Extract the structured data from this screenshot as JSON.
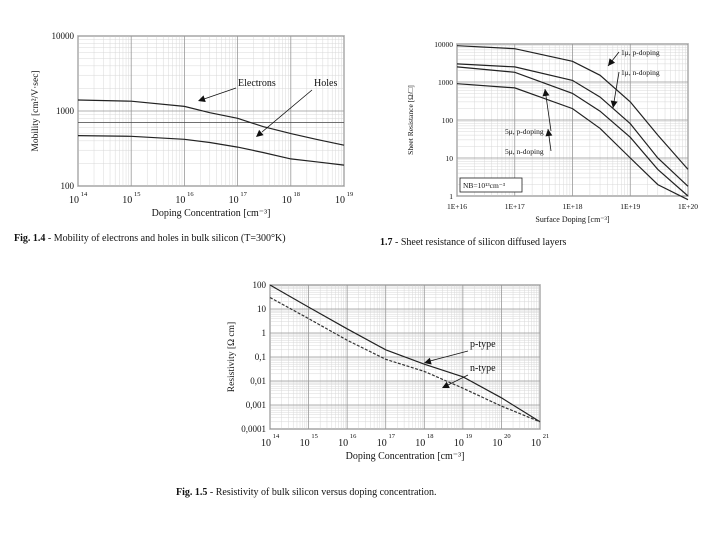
{
  "chart_data": [
    {
      "id": "mobility",
      "type": "line",
      "xlabel": "Doping Concentration [cm⁻³]",
      "ylabel": "Mobility [cm²/V·sec]",
      "xscale": "log",
      "yscale": "log",
      "xlim": [
        100000000000000.0,
        1e+19
      ],
      "ylim": [
        100,
        10000
      ],
      "x_ticks": [
        "10",
        "10",
        "10",
        "10",
        "10",
        "10"
      ],
      "x_tick_exp": [
        "14",
        "15",
        "16",
        "17",
        "18",
        "19"
      ],
      "y_ticks": [
        "100",
        "1000",
        "10000"
      ],
      "hline": 700,
      "grid": true,
      "series": [
        {
          "name": "Electrons",
          "x": [
            100000000000000.0,
            1000000000000000.0,
            1e+16,
            3e+16,
            1e+17,
            3e+17,
            1e+18,
            3e+18,
            1e+19
          ],
          "y": [
            1400,
            1350,
            1150,
            950,
            800,
            620,
            500,
            420,
            350
          ]
        },
        {
          "name": "Holes",
          "x": [
            100000000000000.0,
            1000000000000000.0,
            1e+16,
            3e+16,
            1e+17,
            3e+17,
            1e+18,
            3e+18,
            1e+19
          ],
          "y": [
            470,
            460,
            420,
            380,
            330,
            280,
            230,
            210,
            190
          ]
        }
      ],
      "annotations": [
        "Electrons",
        "Holes"
      ],
      "caption_bold": "Fig. 1.4",
      "caption_rest": " - Mobility of electrons and holes in bulk silicon (T=300°K)"
    },
    {
      "id": "sheet_resistance",
      "type": "line",
      "xlabel": "Surface Doping [cm⁻³]",
      "ylabel": "Sheet Resistance [Ω/□]",
      "xscale": "log",
      "yscale": "log",
      "xlim": [
        1e+16,
        1e+20
      ],
      "ylim": [
        1,
        10000
      ],
      "x_ticks": [
        "1E+16",
        "1E+17",
        "1E+18",
        "1E+19",
        "1E+20"
      ],
      "y_ticks": [
        "1",
        "10",
        "100",
        "1000",
        "10000"
      ],
      "grid": true,
      "series": [
        {
          "name": "1μ, p-doping",
          "x": [
            1e+16,
            1e+17,
            1e+18,
            3e+18,
            1e+19,
            3e+19,
            1e+20
          ],
          "y": [
            9000,
            7500,
            3500,
            1500,
            300,
            40,
            5
          ]
        },
        {
          "name": "1μ, n-doping",
          "x": [
            1e+16,
            1e+17,
            1e+18,
            3e+18,
            1e+19,
            3e+19,
            1e+20
          ],
          "y": [
            3000,
            2500,
            1100,
            400,
            80,
            10,
            1.8
          ]
        },
        {
          "name": "5μ, p-doping",
          "x": [
            1e+16,
            1e+17,
            1e+18,
            3e+18,
            1e+19,
            3e+19,
            1e+20
          ],
          "y": [
            2500,
            1800,
            500,
            170,
            35,
            5,
            1
          ]
        },
        {
          "name": "5μ, n-doping",
          "x": [
            1e+16,
            1e+17,
            1e+18,
            3e+18,
            1e+19,
            3e+19,
            1e+20
          ],
          "y": [
            900,
            700,
            200,
            60,
            10,
            2,
            0.8
          ]
        }
      ],
      "legend_box": "NB=10¹³cm⁻³",
      "caption_bold": "1.7",
      "caption_rest": " - Sheet resistance of silicon diffused layers"
    },
    {
      "id": "resistivity",
      "type": "line",
      "xlabel": "Doping Concentration [cm⁻³]",
      "ylabel": "Resistivity [Ω cm]",
      "xscale": "log",
      "yscale": "log",
      "xlim": [
        100000000000000.0,
        1e+21
      ],
      "ylim": [
        0.0001,
        100
      ],
      "x_ticks": [
        "10",
        "10",
        "10",
        "10",
        "10",
        "10",
        "10",
        "10"
      ],
      "x_tick_exp": [
        "14",
        "15",
        "16",
        "17",
        "18",
        "19",
        "20",
        "21"
      ],
      "y_ticks": [
        "0,0001",
        "0,001",
        "0,01",
        "0,1",
        "1",
        "10",
        "100"
      ],
      "grid": true,
      "series": [
        {
          "name": "p-type",
          "x": [
            100000000000000.0,
            1000000000000000.0,
            1e+16,
            1e+17,
            1e+18,
            1e+19,
            1e+20,
            1e+21
          ],
          "y": [
            100,
            12,
            1.5,
            0.2,
            0.05,
            0.015,
            0.002,
            0.0002
          ]
        },
        {
          "name": "n-type",
          "x": [
            100000000000000.0,
            1000000000000000.0,
            1e+16,
            1e+17,
            1e+18,
            1e+19,
            1e+20,
            1e+21
          ],
          "y": [
            30,
            4,
            0.5,
            0.08,
            0.025,
            0.005,
            0.0009,
            0.0002
          ]
        }
      ],
      "annotations": [
        "p-type",
        "n-type"
      ],
      "caption_bold": "Fig. 1.5",
      "caption_rest": " - Resistivity of bulk silicon versus doping concentration."
    }
  ]
}
